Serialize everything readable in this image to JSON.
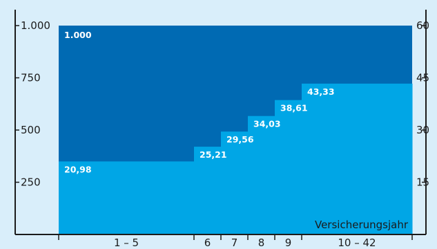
{
  "chart_data": {
    "type": "area",
    "x_axis": {
      "label": "Versicherungsjahr",
      "categories": [
        {
          "label": "1 – 5",
          "years": 5
        },
        {
          "label": "6",
          "years": 1
        },
        {
          "label": "7",
          "years": 1
        },
        {
          "label": "8",
          "years": 1
        },
        {
          "label": "9",
          "years": 1
        },
        {
          "label": "10 – 42",
          "years": 5
        }
      ]
    },
    "left_axis": {
      "range": [
        0,
        1000
      ],
      "ticks": [
        "250",
        "500",
        "750",
        "1.000"
      ],
      "tick_values": [
        250,
        500,
        750,
        1000
      ]
    },
    "right_axis": {
      "range": [
        0,
        60
      ],
      "ticks": [
        "15",
        "30",
        "45",
        "60"
      ],
      "tick_values": [
        15,
        30,
        45,
        60
      ]
    },
    "series": [
      {
        "values": [
          1000,
          1000,
          1000,
          1000,
          1000,
          1000
        ],
        "labels": [
          "1.000"
        ],
        "color": "#006ab3"
      },
      {
        "values": [
          20.98,
          25.21,
          29.56,
          34.03,
          38.61,
          43.33
        ],
        "labels": [
          "20,98",
          "25,21",
          "29,56",
          "34,03",
          "38,61",
          "43,33"
        ],
        "axis": "right",
        "color": "#00a6e6"
      }
    ],
    "grid": false
  },
  "colors": {
    "background": "#d9eefa",
    "dark": "#006ab3",
    "light": "#00a6e6",
    "axis": "#1b1b1b"
  }
}
